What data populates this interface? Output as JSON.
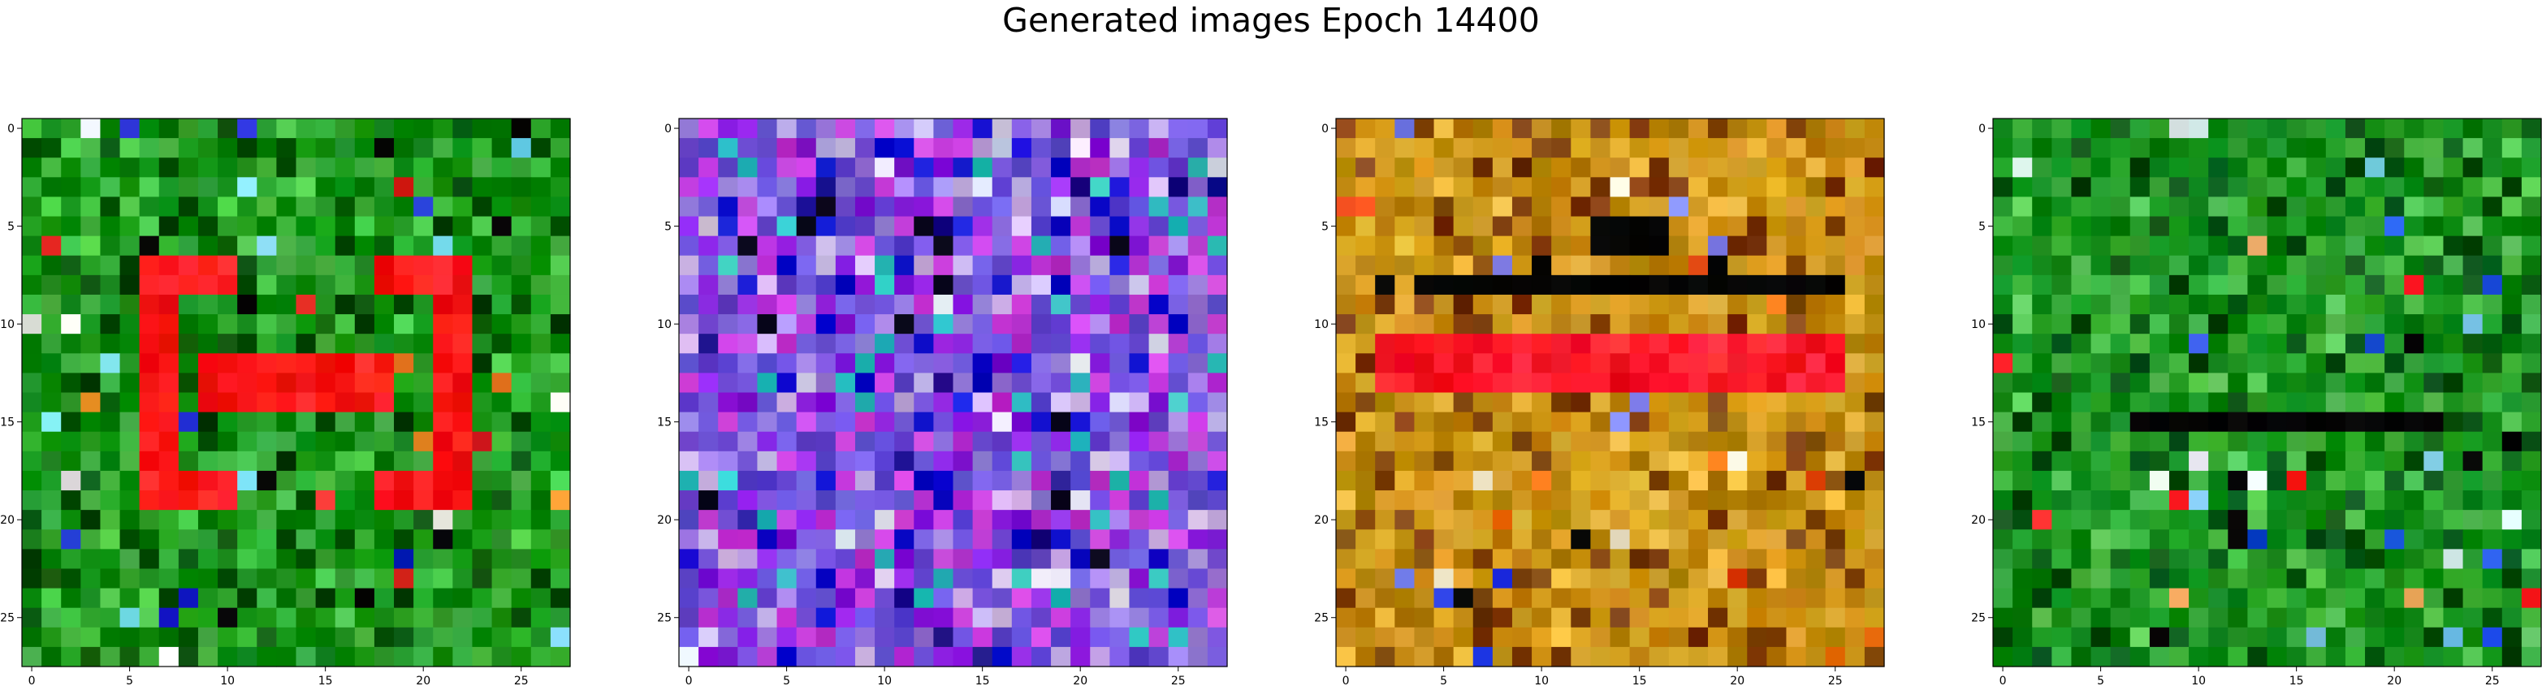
{
  "figure": {
    "title": "Generated images Epoch 14400"
  },
  "chart_data": [
    {
      "type": "heatmap",
      "title": "",
      "palette": {
        "base": "#0a8a0a",
        "dark": "#004d00",
        "mid": "#2e9e2e",
        "light": "#3fbf3f",
        "accent": "#ff1a1a",
        "accent2": "#e8322a",
        "black": "#050505",
        "blue": "#1f2fd1",
        "cyan": "#7fe0f0",
        "white": "#f0f0f0",
        "orange": "#f08a2a"
      },
      "grid": {
        "rows": 28,
        "cols": 28
      },
      "xlim": [
        -0.5,
        27.5
      ],
      "ylim": [
        27.5,
        -0.5
      ],
      "xticks": [
        0,
        5,
        10,
        15,
        20,
        25
      ],
      "yticks": [
        0,
        5,
        10,
        15,
        20,
        25
      ]
    },
    {
      "type": "heatmap",
      "title": "",
      "palette": {
        "base": "#6a4fd6",
        "dark": "#1a108a",
        "mid": "#9a7ee0",
        "light": "#c9b2e8",
        "accent": "#c23ad8",
        "accent2": "#8a1fe0",
        "black": "#08061a",
        "blue": "#1010d0",
        "cyan": "#2fc0c0",
        "white": "#dcdcf0",
        "orange": "#e0a030"
      },
      "grid": {
        "rows": 28,
        "cols": 28
      },
      "xlim": [
        -0.5,
        27.5
      ],
      "ylim": [
        27.5,
        -0.5
      ],
      "xticks": [
        0,
        5,
        10,
        15,
        20,
        25
      ],
      "yticks": [
        0,
        5,
        10,
        15,
        20,
        25
      ]
    },
    {
      "type": "heatmap",
      "title": "",
      "palette": {
        "base": "#c08a10",
        "dark": "#7a3a06",
        "mid": "#d49a1a",
        "light": "#e6b23a",
        "accent": "#ff1a2a",
        "accent2": "#e84a10",
        "black": "#050505",
        "blue": "#2030e0",
        "cyan": "#8080f0",
        "white": "#f2e6d0",
        "orange": "#f07a12"
      },
      "grid": {
        "rows": 28,
        "cols": 28
      },
      "xlim": [
        -0.5,
        27.5
      ],
      "ylim": [
        27.5,
        -0.5
      ],
      "xticks": [
        0,
        5,
        10,
        15,
        20,
        25
      ],
      "yticks": [
        0,
        5,
        10,
        15,
        20,
        25
      ]
    },
    {
      "type": "heatmap",
      "title": "",
      "palette": {
        "base": "#0f8a18",
        "dark": "#035010",
        "mid": "#2aa02a",
        "light": "#4fc04f",
        "accent": "#f06a20",
        "accent2": "#ff2020",
        "black": "#050505",
        "blue": "#2050e0",
        "cyan": "#80d0f0",
        "white": "#e0f0f0",
        "orange": "#f0a060"
      },
      "grid": {
        "rows": 28,
        "cols": 28
      },
      "xlim": [
        -0.5,
        27.5
      ],
      "ylim": [
        27.5,
        -0.5
      ],
      "xticks": [
        0,
        5,
        10,
        15,
        20,
        25
      ],
      "yticks": [
        0,
        5,
        10,
        15,
        20,
        25
      ]
    }
  ]
}
